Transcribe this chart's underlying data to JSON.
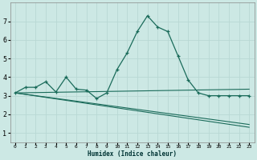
{
  "xlabel": "Humidex (Indice chaleur)",
  "ylabel": "",
  "bg_color": "#cce8e4",
  "grid_color": "#b8d8d4",
  "line_color": "#1a6b5a",
  "xlim": [
    -0.5,
    23.5
  ],
  "ylim": [
    0.5,
    8.0
  ],
  "xticks": [
    0,
    1,
    2,
    3,
    4,
    5,
    6,
    7,
    8,
    9,
    10,
    11,
    12,
    13,
    14,
    15,
    16,
    17,
    18,
    19,
    20,
    21,
    22,
    23
  ],
  "yticks": [
    1,
    2,
    3,
    4,
    5,
    6,
    7
  ],
  "line1_x": [
    0,
    1,
    2,
    3,
    4,
    5,
    6,
    7,
    8,
    9,
    10,
    11,
    12,
    13,
    14,
    15,
    16,
    17,
    18,
    19,
    20,
    21,
    22,
    23
  ],
  "line1_y": [
    3.15,
    3.45,
    3.45,
    3.75,
    3.2,
    4.0,
    3.35,
    3.3,
    2.85,
    3.15,
    4.4,
    5.3,
    6.45,
    7.3,
    6.7,
    6.45,
    5.15,
    3.85,
    3.15,
    3.0,
    3.0,
    3.0,
    3.0,
    3.0
  ],
  "line2_x": [
    0,
    23
  ],
  "line2_y": [
    3.15,
    3.35
  ],
  "line3_x": [
    0,
    23
  ],
  "line3_y": [
    3.15,
    1.3
  ],
  "line4_x": [
    0,
    23
  ],
  "line4_y": [
    3.15,
    1.3
  ]
}
